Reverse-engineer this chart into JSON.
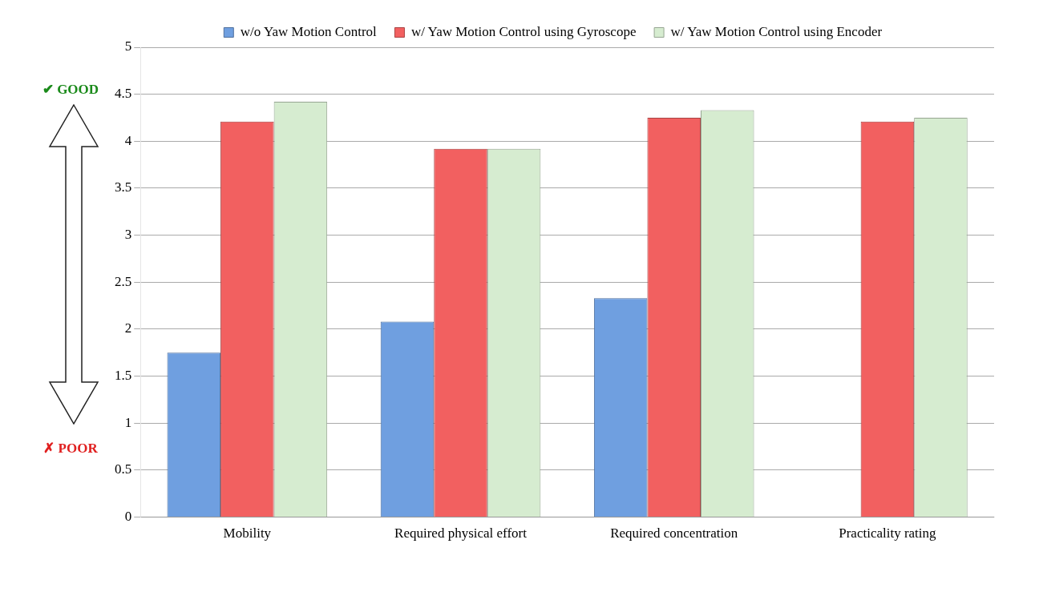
{
  "chart_data": {
    "type": "bar",
    "categories": [
      "Mobility",
      "Required physical effort",
      "Required concentration",
      "Practicality rating"
    ],
    "series": [
      {
        "name": "w/o Yaw Motion Control",
        "color": "#6f9fe0",
        "values": [
          1.75,
          2.08,
          2.33,
          null
        ]
      },
      {
        "name": "w/ Yaw Motion Control using Gyroscope",
        "color": "#f26060",
        "values": [
          4.21,
          3.92,
          4.25,
          4.21
        ]
      },
      {
        "name": "w/ Yaw Motion Control using Encoder",
        "color": "#d6ecd0",
        "values": [
          4.42,
          3.92,
          4.33,
          4.25
        ]
      }
    ],
    "ylim": [
      0,
      5
    ],
    "yticks": [
      0,
      0.5,
      1,
      1.5,
      2,
      2.5,
      3,
      3.5,
      4,
      4.5,
      5
    ],
    "grid": "y",
    "legend": "top",
    "annotations": [
      "✔ GOOD",
      "✗ POOR"
    ]
  }
}
